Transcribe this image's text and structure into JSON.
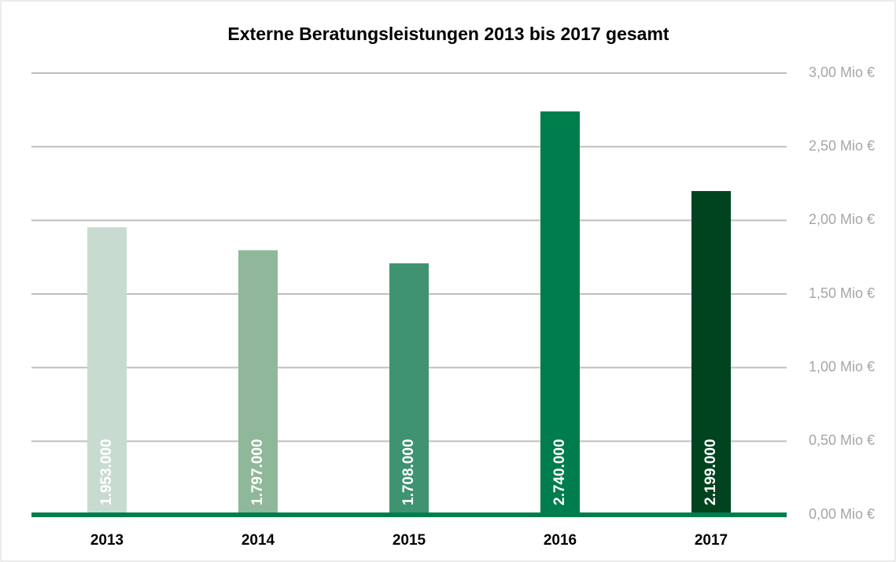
{
  "chart_data": {
    "type": "bar",
    "title": "Externe Beratungsleistungen 2013 bis 2017 gesamt",
    "categories": [
      "2013",
      "2014",
      "2015",
      "2016",
      "2017"
    ],
    "values": [
      1.953,
      1.797,
      1.708,
      2.74,
      2.199
    ],
    "value_labels": [
      "1.953.000",
      "1.797.000",
      "1.708.000",
      "2.740.000",
      "2.199.000"
    ],
    "colors": [
      "#c8dbd0",
      "#8fb89a",
      "#3f9370",
      "#007d4c",
      "#00441f"
    ],
    "ylim": [
      0,
      3
    ],
    "yticks": [
      {
        "value": 0,
        "label": "0,00 Mio €"
      },
      {
        "value": 0.5,
        "label": "0,50 Mio €"
      },
      {
        "value": 1,
        "label": "1,00 Mio €"
      },
      {
        "value": 1.5,
        "label": "1,50 Mio €"
      },
      {
        "value": 2,
        "label": "2,00 Mio €"
      },
      {
        "value": 2.5,
        "label": "2,50 Mio €"
      },
      {
        "value": 3,
        "label": "3,00 Mio €"
      }
    ],
    "grid": true
  }
}
